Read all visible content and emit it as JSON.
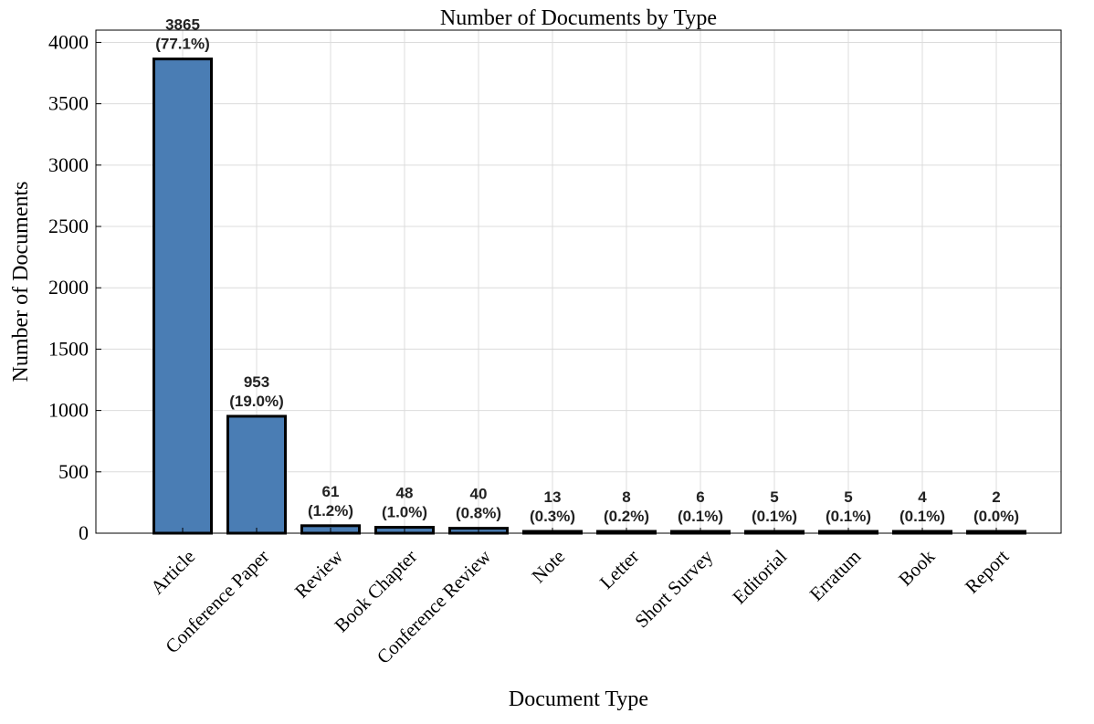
{
  "chart_data": {
    "type": "bar",
    "title": "Number of Documents by Type",
    "xlabel": "Document Type",
    "ylabel": "Number of Documents",
    "categories": [
      "Article",
      "Conference Paper",
      "Review",
      "Book Chapter",
      "Conference Review",
      "Note",
      "Letter",
      "Short Survey",
      "Editorial",
      "Erratum",
      "Book",
      "Report"
    ],
    "values": [
      3865,
      953,
      61,
      48,
      40,
      13,
      8,
      6,
      5,
      5,
      4,
      2
    ],
    "percent_labels": [
      "(77.1%)",
      "(19.0%)",
      "(1.2%)",
      "(1.0%)",
      "(0.8%)",
      "(0.3%)",
      "(0.2%)",
      "(0.1%)",
      "(0.1%)",
      "(0.1%)",
      "(0.1%)",
      "(0.0%)"
    ],
    "ylim": [
      0,
      4100
    ],
    "yticks": [
      0,
      500,
      1000,
      1500,
      2000,
      2500,
      3000,
      3500,
      4000
    ],
    "grid": true,
    "legend": "none",
    "bar_color": "#4a7db4",
    "bar_edge_color": "#000000"
  }
}
